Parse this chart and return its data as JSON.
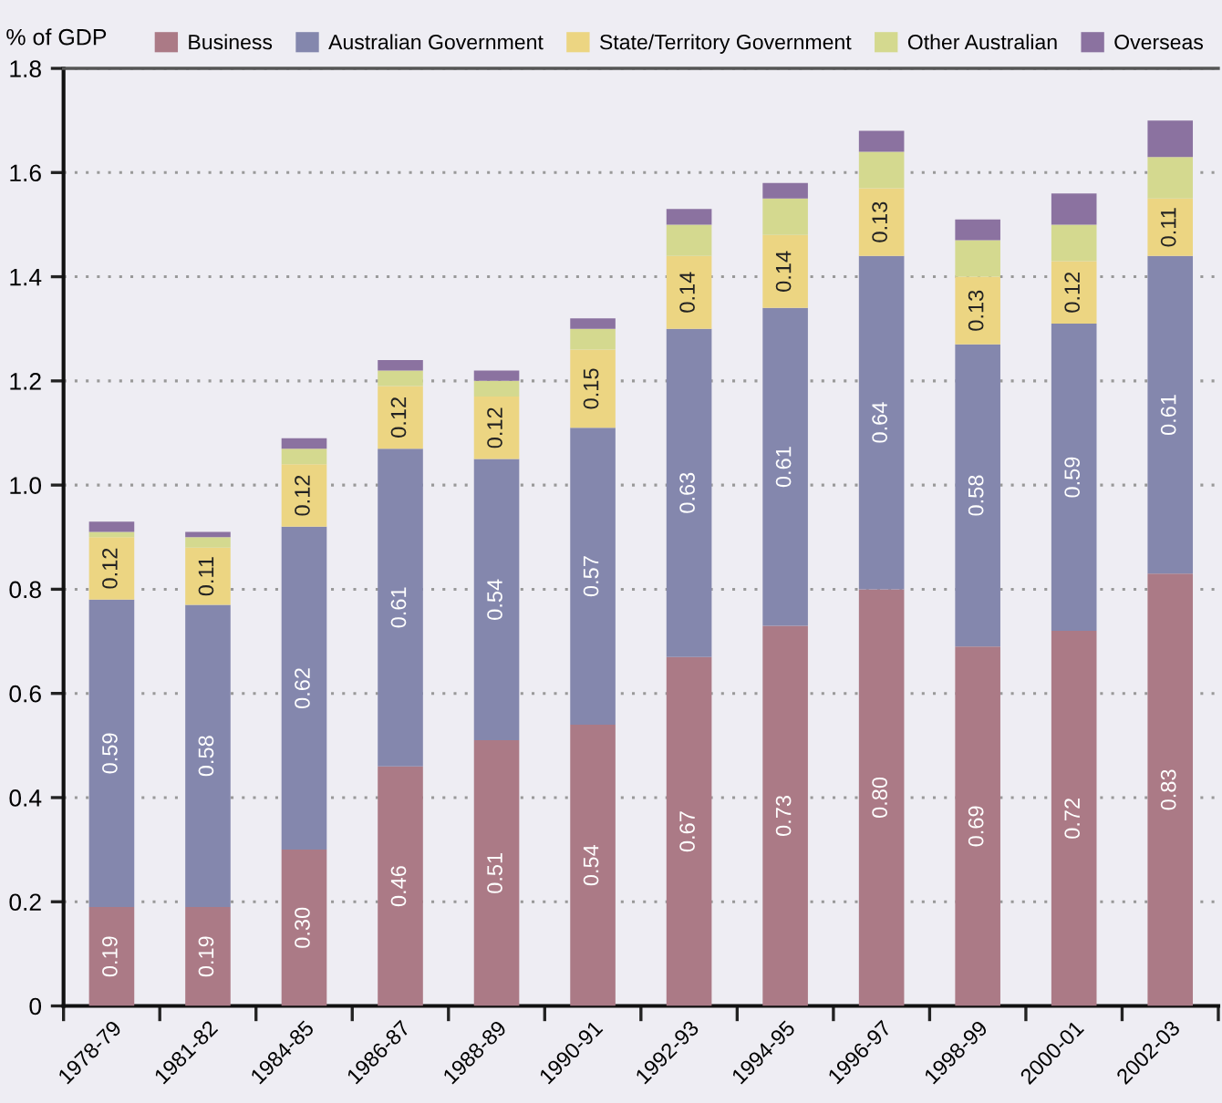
{
  "chart_data": {
    "type": "bar",
    "stacked": true,
    "ylabel": "% of GDP",
    "categories": [
      "1978-79",
      "1981-82",
      "1984-85",
      "1986-87",
      "1988-89",
      "1990-91",
      "1992-93",
      "1994-95",
      "1996-97",
      "1998-99",
      "2000-01",
      "2002-03"
    ],
    "series": [
      {
        "name": "Business",
        "color": "#ab7a86",
        "values": [
          0.19,
          0.19,
          0.3,
          0.46,
          0.51,
          0.54,
          0.67,
          0.73,
          0.8,
          0.69,
          0.72,
          0.83
        ],
        "value_labels": [
          "0.19",
          "0.19",
          "0.30",
          "0.46",
          "0.51",
          "0.54",
          "0.67",
          "0.73",
          "0.80",
          "0.69",
          "0.72",
          "0.83"
        ]
      },
      {
        "name": "Australian Government",
        "color": "#8487ad",
        "values": [
          0.59,
          0.58,
          0.62,
          0.61,
          0.54,
          0.57,
          0.63,
          0.61,
          0.64,
          0.58,
          0.59,
          0.61
        ],
        "value_labels": [
          "0.59",
          "0.58",
          "0.62",
          "0.61",
          "0.54",
          "0.57",
          "0.63",
          "0.61",
          "0.64",
          "0.58",
          "0.59",
          "0.61"
        ]
      },
      {
        "name": "State/Territory Government",
        "color": "#ecd582",
        "values": [
          0.12,
          0.11,
          0.12,
          0.12,
          0.12,
          0.15,
          0.14,
          0.14,
          0.13,
          0.13,
          0.12,
          0.11
        ],
        "value_labels": [
          "0.12",
          "0.11",
          "0.12",
          "0.12",
          "0.12",
          "0.15",
          "0.14",
          "0.14",
          "0.13",
          "0.13",
          "0.12",
          "0.11"
        ]
      },
      {
        "name": "Other Australian",
        "color": "#d4d98f",
        "values": [
          0.01,
          0.02,
          0.03,
          0.03,
          0.03,
          0.04,
          0.06,
          0.07,
          0.07,
          0.07,
          0.07,
          0.08
        ]
      },
      {
        "name": "Overseas",
        "color": "#8b72a0",
        "values": [
          0.02,
          0.01,
          0.02,
          0.02,
          0.02,
          0.02,
          0.03,
          0.03,
          0.04,
          0.04,
          0.06,
          0.07
        ]
      }
    ],
    "ylim": [
      0,
      1.8
    ],
    "yticks": [
      0,
      0.2,
      0.4,
      0.6,
      0.8,
      {
        "value": 1.0,
        "label": "1.0"
      },
      1.2,
      1.4,
      1.6,
      1.8
    ],
    "grid": "y",
    "legend": "top"
  }
}
